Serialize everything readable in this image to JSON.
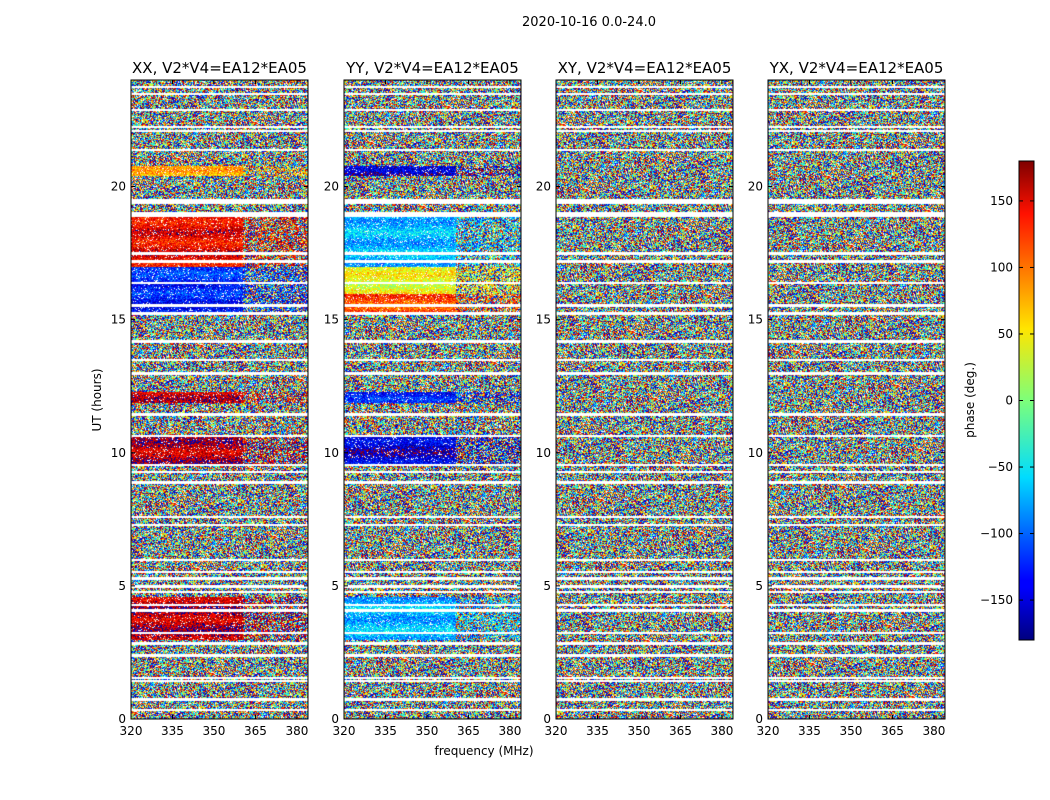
{
  "chart_data": {
    "type": "heatmap",
    "suptitle": "2020-10-16 0.0-24.0",
    "xlabel": "frequency (MHz)",
    "ylabel": "UT (hours)",
    "xlim": [
      320,
      384
    ],
    "ylim": [
      0,
      24
    ],
    "xticks": [
      "320",
      "335",
      "350",
      "365",
      "380"
    ],
    "yticks": [
      "0",
      "5",
      "10",
      "15",
      "20"
    ],
    "panels": [
      {
        "title": "XX, V2*V4=EA12*EA05",
        "polarization": "XX",
        "coherent_phase_deg": [
          {
            "ut": [
              15.3,
              16.0
            ],
            "phase": -130
          },
          {
            "ut": [
              16.0,
              17.0
            ],
            "phase": -120
          },
          {
            "ut": [
              17.0,
              18.9
            ],
            "phase": 140
          },
          {
            "ut": [
              11.9,
              12.3
            ],
            "phase": 150
          },
          {
            "ut": [
              20.4,
              20.8
            ],
            "phase": 70
          },
          {
            "ut": [
              9.6,
              10.6
            ],
            "phase": 160
          },
          {
            "ut": [
              3.0,
              4.6
            ],
            "phase": 160
          }
        ]
      },
      {
        "title": "YY, V2*V4=EA12*EA05",
        "polarization": "YY",
        "coherent_phase_deg": [
          {
            "ut": [
              15.3,
              16.0
            ],
            "phase": 110
          },
          {
            "ut": [
              16.0,
              17.0
            ],
            "phase": 40
          },
          {
            "ut": [
              17.0,
              18.9
            ],
            "phase": -70
          },
          {
            "ut": [
              11.9,
              12.3
            ],
            "phase": -130
          },
          {
            "ut": [
              20.4,
              20.8
            ],
            "phase": -160
          },
          {
            "ut": [
              9.6,
              10.6
            ],
            "phase": -150
          },
          {
            "ut": [
              3.0,
              4.6
            ],
            "phase": -70
          }
        ]
      },
      {
        "title": "XY, V2*V4=EA12*EA05",
        "polarization": "XY",
        "coherent_phase_deg": []
      },
      {
        "title": "YX, V2*V4=EA12*EA05",
        "polarization": "YX",
        "coherent_phase_deg": []
      }
    ],
    "colorbar": {
      "label": "phase (deg.)",
      "range": [
        -180,
        180
      ],
      "ticks": [
        "150",
        "100",
        "50",
        "0",
        "−50",
        "−100",
        "−150"
      ],
      "tick_values": [
        150,
        100,
        50,
        0,
        -50,
        -100,
        -150
      ],
      "colormap": "jet"
    },
    "flagged_ut_hours": [
      0.35,
      0.75,
      1.45,
      1.55,
      2.4,
      2.85,
      3.25,
      4.1,
      4.3,
      4.8,
      5.0,
      5.3,
      5.55,
      6.0,
      7.3,
      7.6,
      8.9,
      9.3,
      9.55,
      10.65,
      11.45,
      13.0,
      13.5,
      14.2,
      15.25,
      15.55,
      16.4,
      17.2,
      17.5,
      18.9,
      19.0,
      19.4,
      19.5,
      21.4,
      22.1,
      22.25,
      22.9,
      23.5,
      23.75
    ]
  }
}
